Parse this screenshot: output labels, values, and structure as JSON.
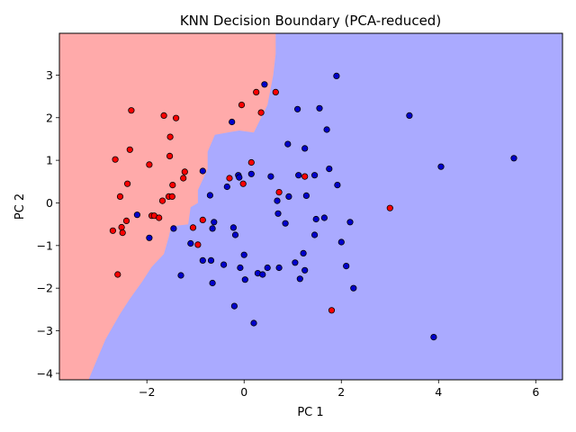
{
  "chart_data": {
    "type": "scatter",
    "title": "KNN Decision Boundary (PCA-reduced)",
    "xlabel": "PC 1",
    "ylabel": "PC 2",
    "xlim": [
      -3.8,
      6.55
    ],
    "ylim": [
      -4.15,
      3.98
    ],
    "xticks": [
      -2,
      0,
      2,
      4,
      6
    ],
    "xtick_labels": [
      "−2",
      "0",
      "2",
      "4",
      "6"
    ],
    "yticks": [
      -4,
      -3,
      -2,
      -1,
      0,
      1,
      2,
      3
    ],
    "ytick_labels": [
      "−4",
      "−3",
      "−2",
      "−1",
      "0",
      "1",
      "2",
      "3"
    ],
    "grid": false,
    "background_class": "blue",
    "regions": [
      {
        "class": "red",
        "color": "#ffaaaa",
        "boundary": [
          [
            -3.8,
            3.98
          ],
          [
            0.65,
            3.98
          ],
          [
            0.65,
            3.5
          ],
          [
            0.6,
            3.0
          ],
          [
            0.48,
            2.3
          ],
          [
            0.2,
            1.65
          ],
          [
            -0.1,
            1.7
          ],
          [
            -0.6,
            1.6
          ],
          [
            -0.75,
            1.2
          ],
          [
            -0.75,
            0.8
          ],
          [
            -0.95,
            0.3
          ],
          [
            -0.95,
            0.0
          ],
          [
            -1.1,
            -0.1
          ],
          [
            -1.15,
            -0.5
          ],
          [
            -1.5,
            -0.55
          ],
          [
            -1.55,
            -0.8
          ],
          [
            -1.65,
            -1.2
          ],
          [
            -1.9,
            -1.5
          ],
          [
            -2.1,
            -1.85
          ],
          [
            -2.35,
            -2.25
          ],
          [
            -2.55,
            -2.6
          ],
          [
            -2.7,
            -2.9
          ],
          [
            -2.85,
            -3.2
          ],
          [
            -3.0,
            -3.6
          ],
          [
            -3.2,
            -4.15
          ],
          [
            -3.8,
            -4.15
          ]
        ]
      }
    ],
    "series": [
      {
        "color": "#ff0000",
        "points": [
          [
            -2.7,
            -0.65
          ],
          [
            -2.65,
            1.02
          ],
          [
            -2.6,
            -1.68
          ],
          [
            -2.55,
            0.15
          ],
          [
            -2.52,
            -0.57
          ],
          [
            -2.5,
            -0.7
          ],
          [
            -2.42,
            -0.42
          ],
          [
            -2.4,
            0.45
          ],
          [
            -2.35,
            1.25
          ],
          [
            -2.32,
            2.17
          ],
          [
            -1.95,
            0.9
          ],
          [
            -1.9,
            -0.3
          ],
          [
            -1.85,
            -0.3
          ],
          [
            -1.75,
            -0.35
          ],
          [
            -1.68,
            0.05
          ],
          [
            -1.65,
            2.05
          ],
          [
            -1.55,
            0.15
          ],
          [
            -1.53,
            1.1
          ],
          [
            -1.52,
            1.55
          ],
          [
            -1.48,
            0.15
          ],
          [
            -1.47,
            0.42
          ],
          [
            -1.4,
            1.99
          ],
          [
            -1.25,
            0.58
          ],
          [
            -1.22,
            0.73
          ],
          [
            -1.05,
            -0.58
          ],
          [
            -0.95,
            -0.98
          ],
          [
            -0.85,
            -0.4
          ],
          [
            -0.3,
            0.58
          ],
          [
            -0.05,
            2.3
          ],
          [
            -0.02,
            0.45
          ],
          [
            0.15,
            0.95
          ],
          [
            0.25,
            2.6
          ],
          [
            0.35,
            2.12
          ],
          [
            0.65,
            2.6
          ],
          [
            0.72,
            0.25
          ],
          [
            1.25,
            0.62
          ],
          [
            1.8,
            -2.52
          ],
          [
            3.0,
            -0.12
          ]
        ]
      },
      {
        "color": "#0000cc",
        "points": [
          [
            -2.2,
            -0.28
          ],
          [
            -1.95,
            -0.82
          ],
          [
            -1.45,
            -0.6
          ],
          [
            -1.3,
            -1.7
          ],
          [
            -1.1,
            -0.95
          ],
          [
            -0.85,
            0.75
          ],
          [
            -0.85,
            -1.35
          ],
          [
            -0.7,
            0.18
          ],
          [
            -0.65,
            -1.88
          ],
          [
            -0.65,
            -0.6
          ],
          [
            -0.62,
            -0.45
          ],
          [
            -0.68,
            -1.35
          ],
          [
            -0.42,
            -1.45
          ],
          [
            -0.35,
            0.38
          ],
          [
            -0.25,
            1.9
          ],
          [
            -0.22,
            -0.58
          ],
          [
            -0.2,
            -2.42
          ],
          [
            -0.18,
            -0.75
          ],
          [
            -0.12,
            0.65
          ],
          [
            -0.1,
            0.6
          ],
          [
            -0.08,
            -1.52
          ],
          [
            0.0,
            -1.22
          ],
          [
            0.02,
            -1.8
          ],
          [
            0.15,
            0.68
          ],
          [
            0.2,
            -2.82
          ],
          [
            0.28,
            -1.65
          ],
          [
            0.38,
            -1.68
          ],
          [
            0.42,
            2.78
          ],
          [
            0.48,
            -1.52
          ],
          [
            0.55,
            0.62
          ],
          [
            0.68,
            0.05
          ],
          [
            0.7,
            -0.25
          ],
          [
            0.72,
            -1.52
          ],
          [
            0.85,
            -0.48
          ],
          [
            0.9,
            1.38
          ],
          [
            0.92,
            0.15
          ],
          [
            1.05,
            -1.4
          ],
          [
            1.1,
            2.2
          ],
          [
            1.12,
            0.65
          ],
          [
            1.15,
            -1.78
          ],
          [
            1.22,
            -1.18
          ],
          [
            1.25,
            -1.58
          ],
          [
            1.25,
            1.28
          ],
          [
            1.28,
            0.17
          ],
          [
            1.45,
            -0.75
          ],
          [
            1.45,
            0.65
          ],
          [
            1.48,
            -0.38
          ],
          [
            1.55,
            2.22
          ],
          [
            1.65,
            -0.35
          ],
          [
            1.7,
            1.72
          ],
          [
            1.75,
            0.8
          ],
          [
            1.9,
            2.98
          ],
          [
            1.92,
            0.42
          ],
          [
            2.0,
            -0.92
          ],
          [
            2.1,
            -1.48
          ],
          [
            2.18,
            -0.45
          ],
          [
            2.25,
            -2.0
          ],
          [
            3.4,
            2.05
          ],
          [
            3.9,
            -3.15
          ],
          [
            4.05,
            0.85
          ],
          [
            5.55,
            1.05
          ]
        ]
      }
    ]
  }
}
